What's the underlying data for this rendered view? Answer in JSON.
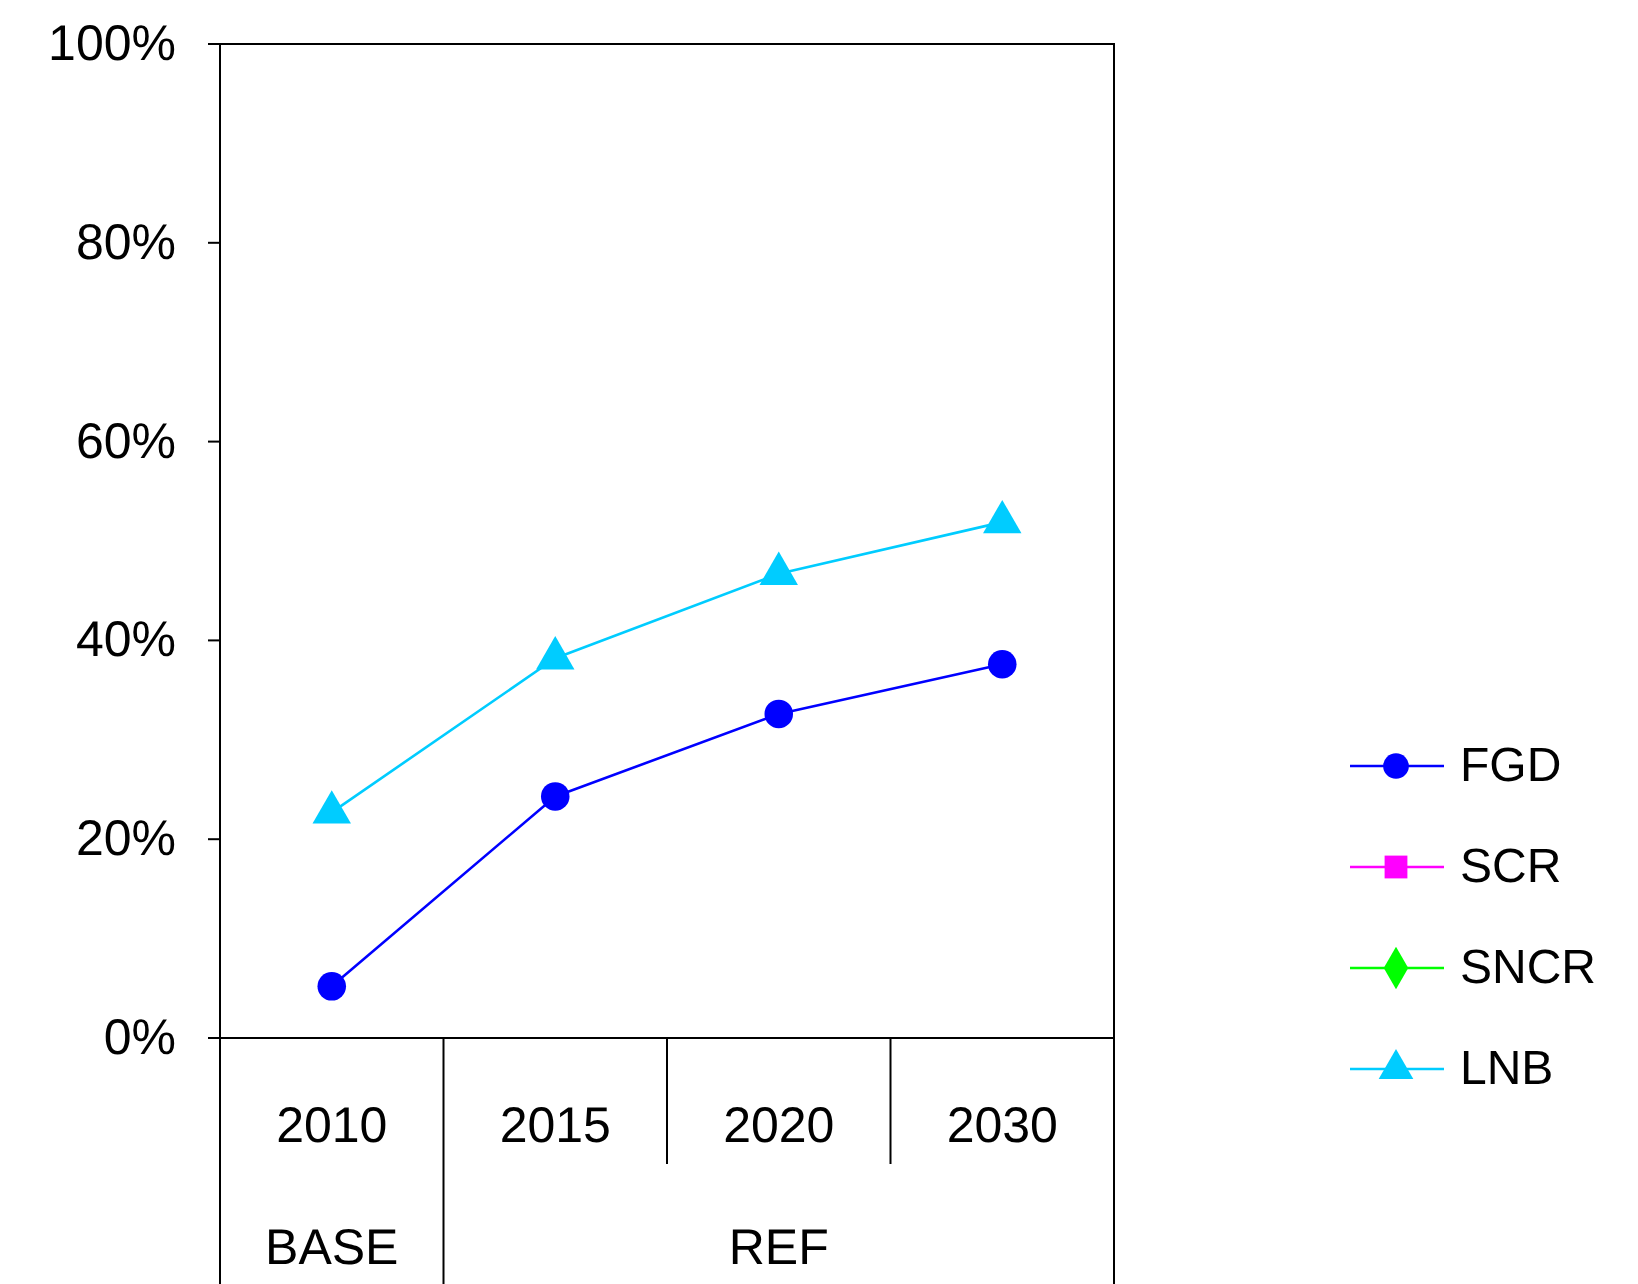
{
  "chart_data": {
    "type": "line",
    "categories": [
      "2010",
      "2015",
      "2020",
      "2030"
    ],
    "series": [
      {
        "name": "FGD",
        "color": "#0000ff",
        "marker": "circle",
        "values": [
          5.2,
          24.3,
          32.6,
          37.6
        ]
      },
      {
        "name": "SCR",
        "color": "#ff00ff",
        "marker": "square",
        "values": [
          null,
          null,
          null,
          null
        ]
      },
      {
        "name": "SNCR",
        "color": "#00ff00",
        "marker": "diamond",
        "values": [
          null,
          null,
          null,
          null
        ]
      },
      {
        "name": "LNB",
        "color": "#00ccff",
        "marker": "triangle",
        "values": [
          22.7,
          38.2,
          46.7,
          51.9
        ]
      }
    ],
    "ylim": [
      0,
      100
    ],
    "yticks": [
      {
        "value": 0,
        "label": "0%"
      },
      {
        "value": 20,
        "label": "20%"
      },
      {
        "value": 40,
        "label": "40%"
      },
      {
        "value": 60,
        "label": "60%"
      },
      {
        "value": 80,
        "label": "80%"
      },
      {
        "value": 100,
        "label": "100%"
      }
    ],
    "annotations": [
      "BASE",
      "REF"
    ],
    "grid": false,
    "legend": "right"
  }
}
